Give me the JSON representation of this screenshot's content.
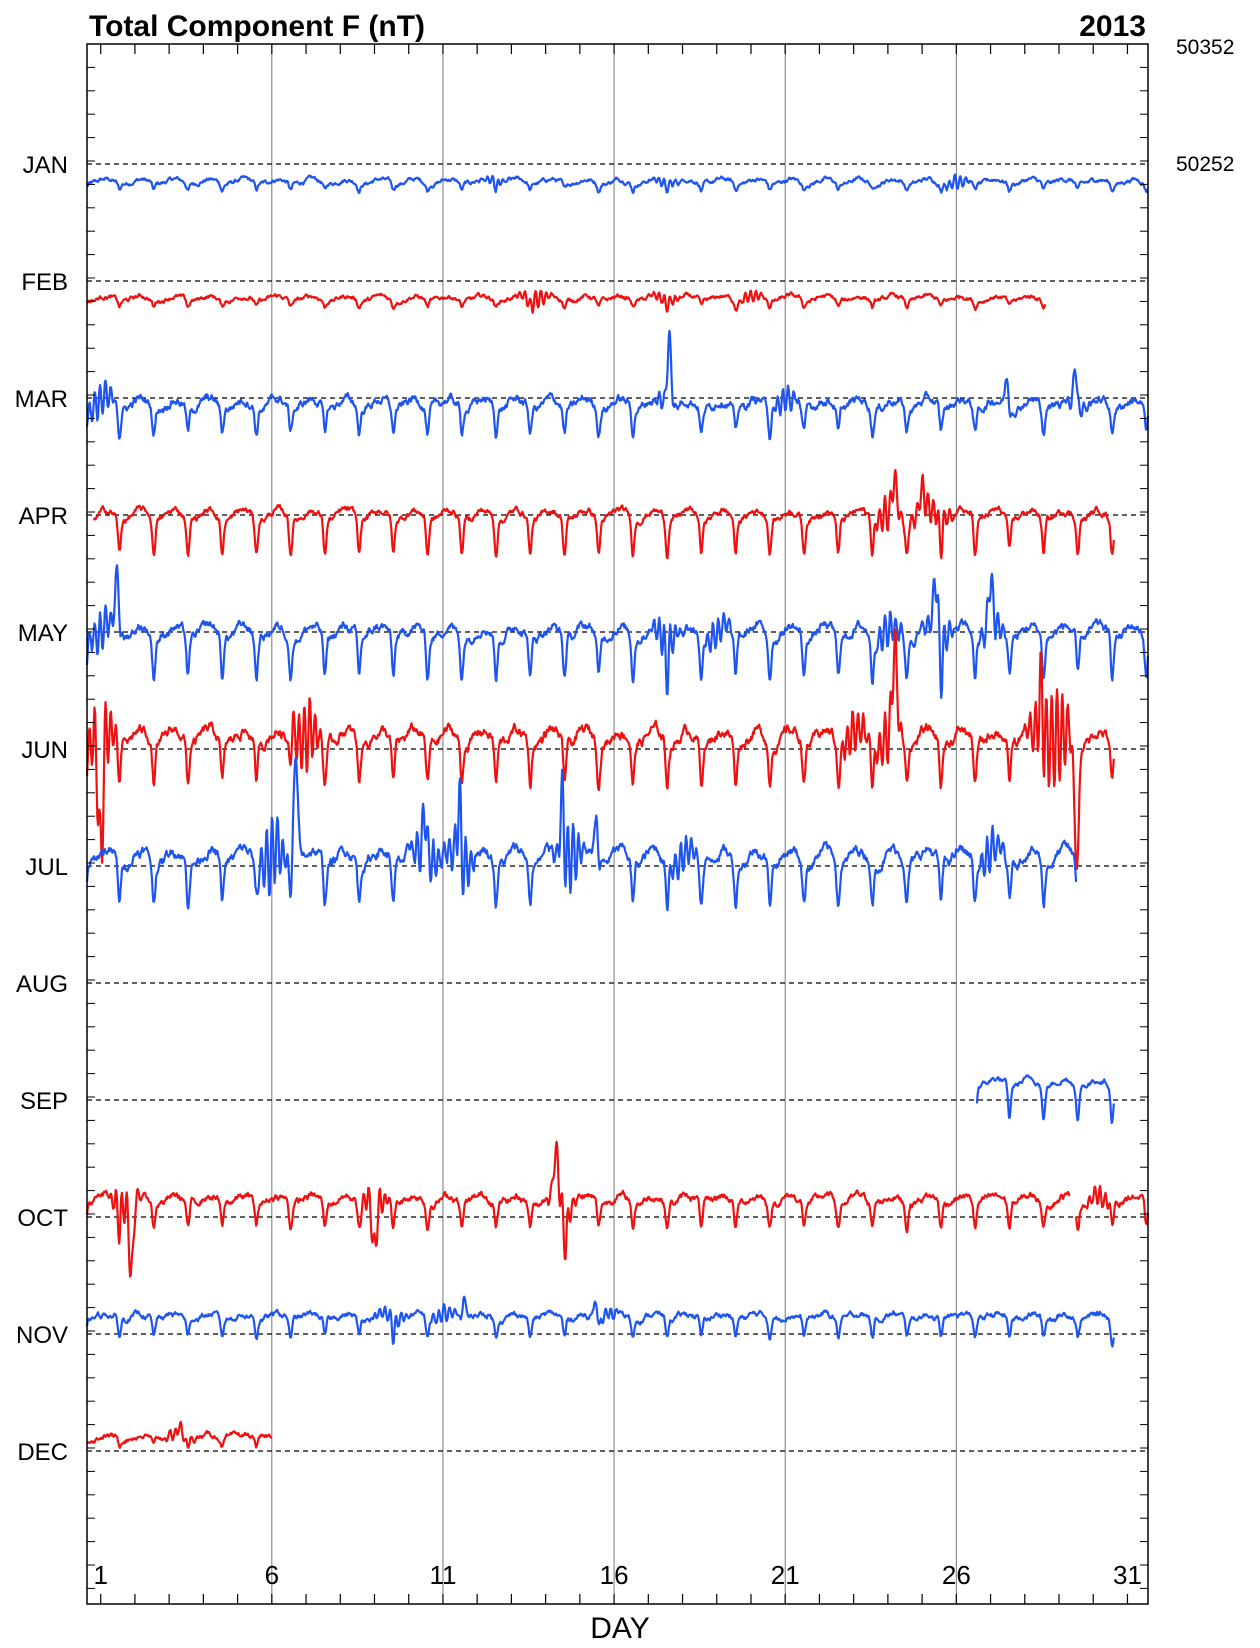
{
  "chart_data": {
    "type": "line",
    "title": "Total Component F (nT)",
    "year": "2013",
    "xlabel": "DAY",
    "xticks": [
      1,
      6,
      11,
      16,
      21,
      26,
      31
    ],
    "xlim": [
      0.6,
      31.6
    ],
    "scale_labels": [
      "50352",
      "50252"
    ],
    "scale_values": [
      50352,
      50252
    ],
    "colors": {
      "blue": "#1f55ee",
      "red": "#ee1111"
    },
    "series": [
      {
        "name": "JAN",
        "color": "blue",
        "segments": [
          {
            "start": 0.6,
            "end": 31.6,
            "amp": [
              6,
              4
            ],
            "dip": 0,
            "noise": 0.6,
            "base": -15,
            "disturb": [
              [
                12.5,
                6
              ],
              [
                17.5,
                6
              ],
              [
                26,
                10
              ]
            ],
            "spikes": []
          }
        ]
      },
      {
        "name": "FEB",
        "color": "red",
        "segments": [
          {
            "start": 0.6,
            "end": 28.6,
            "amp": [
              6,
              4
            ],
            "dip": 0,
            "noise": 0.6,
            "base": -15,
            "disturb": [
              [
                13.7,
                14
              ],
              [
                17.5,
                8
              ],
              [
                20,
                8
              ]
            ],
            "spikes": []
          }
        ]
      },
      {
        "name": "MAR",
        "color": "blue",
        "segments": [
          {
            "start": 0.6,
            "end": 31.6,
            "amp": [
              22,
              8
            ],
            "dip": 0,
            "noise": 1.2,
            "base": -5,
            "disturb": [
              [
                1,
                25
              ],
              [
                17.5,
                12
              ],
              [
                21,
                18
              ],
              [
                29.5,
                12
              ]
            ],
            "spikes": [
              [
                17.6,
                70
              ],
              [
                27.5,
                30
              ],
              [
                29.5,
                42
              ]
            ]
          }
        ]
      },
      {
        "name": "APR",
        "color": "red",
        "segments": [
          {
            "start": 0.8,
            "end": 30.6,
            "amp": [
              30,
              8
            ],
            "dip": 0,
            "noise": 0.9,
            "base": 0,
            "disturb": [
              [
                24,
                25
              ],
              [
                25,
                15
              ],
              [
                25.5,
                15
              ]
            ],
            "spikes": [
              [
                24.2,
                30
              ],
              [
                25,
                20
              ]
            ]
          }
        ]
      },
      {
        "name": "MAY",
        "color": "blue",
        "segments": [
          {
            "start": 0.6,
            "end": 31.6,
            "amp": [
              35,
              10
            ],
            "dip": 0,
            "noise": 1.3,
            "base": 0,
            "disturb": [
              [
                1,
                30
              ],
              [
                17.5,
                30
              ],
              [
                19,
                20
              ],
              [
                24,
                25
              ],
              [
                25.5,
                30
              ],
              [
                27,
                25
              ]
            ],
            "spikes": [
              [
                1.5,
                70
              ],
              [
                25.4,
                45
              ],
              [
                27,
                40
              ]
            ]
          }
        ]
      },
      {
        "name": "JUN",
        "color": "red",
        "segments": [
          {
            "start": 0.6,
            "end": 30.6,
            "amp": [
              35,
              12
            ],
            "dip": 0,
            "noise": 1.5,
            "base": 10,
            "disturb": [
              [
                1,
                60
              ],
              [
                7,
                50
              ],
              [
                23,
                30
              ],
              [
                24,
                40
              ],
              [
                28.5,
                50
              ],
              [
                29,
                60
              ]
            ],
            "spikes": [
              [
                1,
                -105
              ],
              [
                6.6,
                35
              ],
              [
                24.2,
                70
              ],
              [
                28.5,
                55
              ],
              [
                29.5,
                -85
              ]
            ]
          }
        ]
      },
      {
        "name": "JUL",
        "color": "blue",
        "segments": [
          {
            "start": 0.6,
            "end": 29.5,
            "amp": [
              35,
              12
            ],
            "dip": 0,
            "noise": 1.5,
            "base": 8,
            "disturb": [
              [
                6,
                55
              ],
              [
                10.5,
                45
              ],
              [
                11.5,
                45
              ],
              [
                14.7,
                50
              ],
              [
                18,
                25
              ],
              [
                27,
                25
              ]
            ],
            "spikes": [
              [
                6.7,
                85
              ],
              [
                10.5,
                55
              ],
              [
                11.5,
                65
              ],
              [
                14.5,
                70
              ],
              [
                15.5,
                50
              ]
            ]
          }
        ]
      },
      {
        "name": "AUG",
        "color": "red",
        "segments": []
      },
      {
        "name": "SEP",
        "color": "blue",
        "segments": [
          {
            "start": 26.6,
            "end": 30.6,
            "amp": [
              30,
              6
            ],
            "dip": 0,
            "noise": 0.8,
            "base": 15,
            "disturb": [],
            "spikes": []
          }
        ]
      },
      {
        "name": "OCT",
        "color": "red",
        "segments": [
          {
            "start": 0.6,
            "end": 29.3,
            "amp": [
              22,
              6
            ],
            "dip": 0,
            "noise": 1.0,
            "base": 15,
            "disturb": [
              [
                1.7,
                30
              ],
              [
                9,
                25
              ],
              [
                14.5,
                25
              ]
            ],
            "spikes": [
              [
                1.9,
                -60
              ],
              [
                9,
                -45
              ],
              [
                14.3,
                40
              ],
              [
                14.6,
                -20
              ]
            ]
          },
          {
            "start": 29.5,
            "end": 31.6,
            "amp": [
              22,
              6
            ],
            "dip": 0,
            "noise": 1.0,
            "base": 15,
            "disturb": [
              [
                30.2,
                15
              ]
            ],
            "spikes": []
          }
        ]
      },
      {
        "name": "NOV",
        "color": "blue",
        "segments": [
          {
            "start": 0.6,
            "end": 30.6,
            "amp": [
              16,
              4
            ],
            "dip": 0,
            "noise": 0.8,
            "base": 15,
            "disturb": [
              [
                9.5,
                12
              ],
              [
                11,
                12
              ],
              [
                15.8,
                8
              ]
            ],
            "spikes": [
              [
                11.6,
                25
              ],
              [
                15.5,
                15
              ],
              [
                30.6,
                -10
              ]
            ]
          }
        ]
      },
      {
        "name": "DEC",
        "color": "red",
        "segments": [
          {
            "start": 0.6,
            "end": 6.0,
            "amp": [
              7,
              3
            ],
            "dip": 0,
            "noise": 0.7,
            "base": 12,
            "disturb": [
              [
                3.3,
                8
              ]
            ],
            "spikes": [
              [
                3.3,
                8
              ]
            ]
          }
        ]
      }
    ]
  }
}
